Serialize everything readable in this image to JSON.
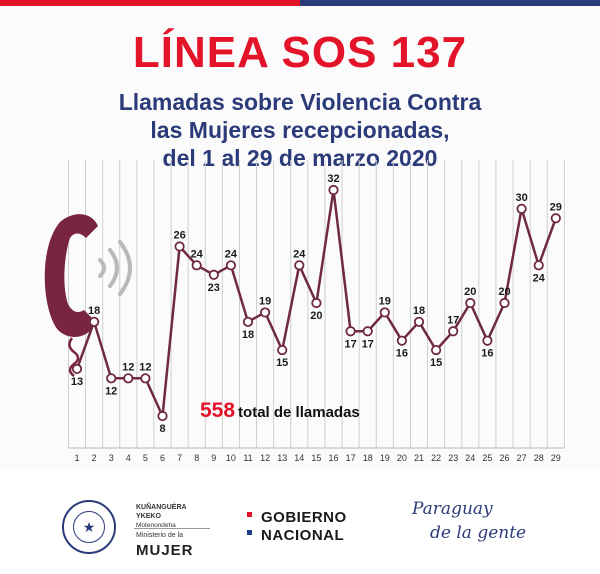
{
  "colors": {
    "red": "#e3142a",
    "navy": "#2b3a78",
    "maroon": "#7a2540",
    "line_point": "#6f2a3d",
    "accent_blue": "#1f3d8f"
  },
  "header": {
    "title": "LÍNEA SOS 137",
    "subtitle_lines": [
      "Llamadas sobre Violencia Contra",
      "las Mujeres recepcionadas,",
      "del 1 al 29 de marzo 2020"
    ]
  },
  "icons": {
    "phone": "telephone-handset-icon",
    "sound_waves": "ringing-waves-icon",
    "seal": "national-seal-icon",
    "flag": "flag-squares-icon"
  },
  "total": {
    "number": "558",
    "label": "total de llamadas"
  },
  "chart_data": {
    "type": "line",
    "title": "Llamadas sobre Violencia Contra las Mujeres recepcionadas, del 1 al 29 de marzo 2020",
    "xlabel": "",
    "ylabel": "",
    "grid": "vertical",
    "categories": [
      "1",
      "2",
      "3",
      "4",
      "5",
      "6",
      "7",
      "8",
      "9",
      "10",
      "11",
      "12",
      "13",
      "14",
      "15",
      "16",
      "17",
      "18",
      "19",
      "20",
      "21",
      "22",
      "23",
      "24",
      "25",
      "26",
      "27",
      "28",
      "29"
    ],
    "values": [
      13,
      18,
      12,
      12,
      12,
      8,
      26,
      24,
      23,
      24,
      18,
      19,
      15,
      24,
      20,
      32,
      17,
      17,
      19,
      16,
      18,
      15,
      17,
      20,
      16,
      20,
      30,
      24,
      29
    ],
    "ylim": [
      8,
      32
    ],
    "total": 558
  },
  "footer": {
    "ministry_line1": "KUÑANGUÉRA",
    "ministry_line2": "YKEKO",
    "ministry_line3": "Motenondeha",
    "ministry_small": "Ministerio de la",
    "ministry_big": "MUJER",
    "gov_line1": "GOBIERNO",
    "gov_line2": "NACIONAL",
    "slogan_line1": "Paraguay",
    "slogan_line2": "de la gente"
  }
}
